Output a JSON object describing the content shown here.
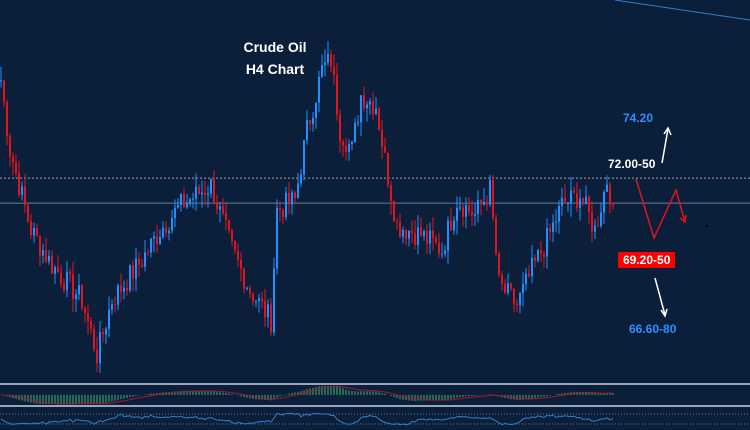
{
  "chart_data": {
    "type": "candlestick",
    "title": "Crude Oil",
    "subtitle": "H4  Chart",
    "colors": {
      "background": "#0b1f3a",
      "up": "#1e90ff",
      "down": "#e0141e",
      "level_label_bg": "#ff0000",
      "target_up": "#2f8fff",
      "target_down": "#2f8fff"
    },
    "price_path": {
      "bar": [
        0,
        3,
        10,
        17,
        27,
        32,
        37,
        47,
        53,
        60,
        70,
        77,
        83,
        90,
        92,
        98,
        102,
        107,
        110,
        113,
        117,
        120,
        125,
        128,
        132,
        140,
        147,
        152,
        158,
        163,
        166,
        172,
        177,
        182,
        187,
        193,
        198,
        202,
        204
      ],
      "close": [
        75.53,
        73.01,
        70.13,
        68.87,
        67.61,
        65.63,
        67.61,
        69.05,
        70.13,
        71.03,
        71.75,
        69.41,
        67.97,
        66.89,
        70.85,
        71.21,
        73.73,
        75.89,
        76.25,
        73.73,
        73.01,
        74.99,
        74.63,
        72.65,
        70.31,
        69.95,
        69.41,
        71.21,
        70.67,
        71.57,
        68.15,
        67.43,
        68.69,
        69.77,
        71.03,
        71.39,
        70.13,
        71.93,
        71.03
      ]
    },
    "levels": {
      "resistance": 72.0,
      "current": 71.1
    },
    "annotations": {
      "target_up": "74.20",
      "resistance_zone": "72.00-50",
      "support_zone": "69.20-50",
      "target_down": "66.60-80"
    },
    "indicators": [
      "MACD histogram with signal line",
      "oscillator line"
    ],
    "grid": false,
    "legend": "none"
  }
}
